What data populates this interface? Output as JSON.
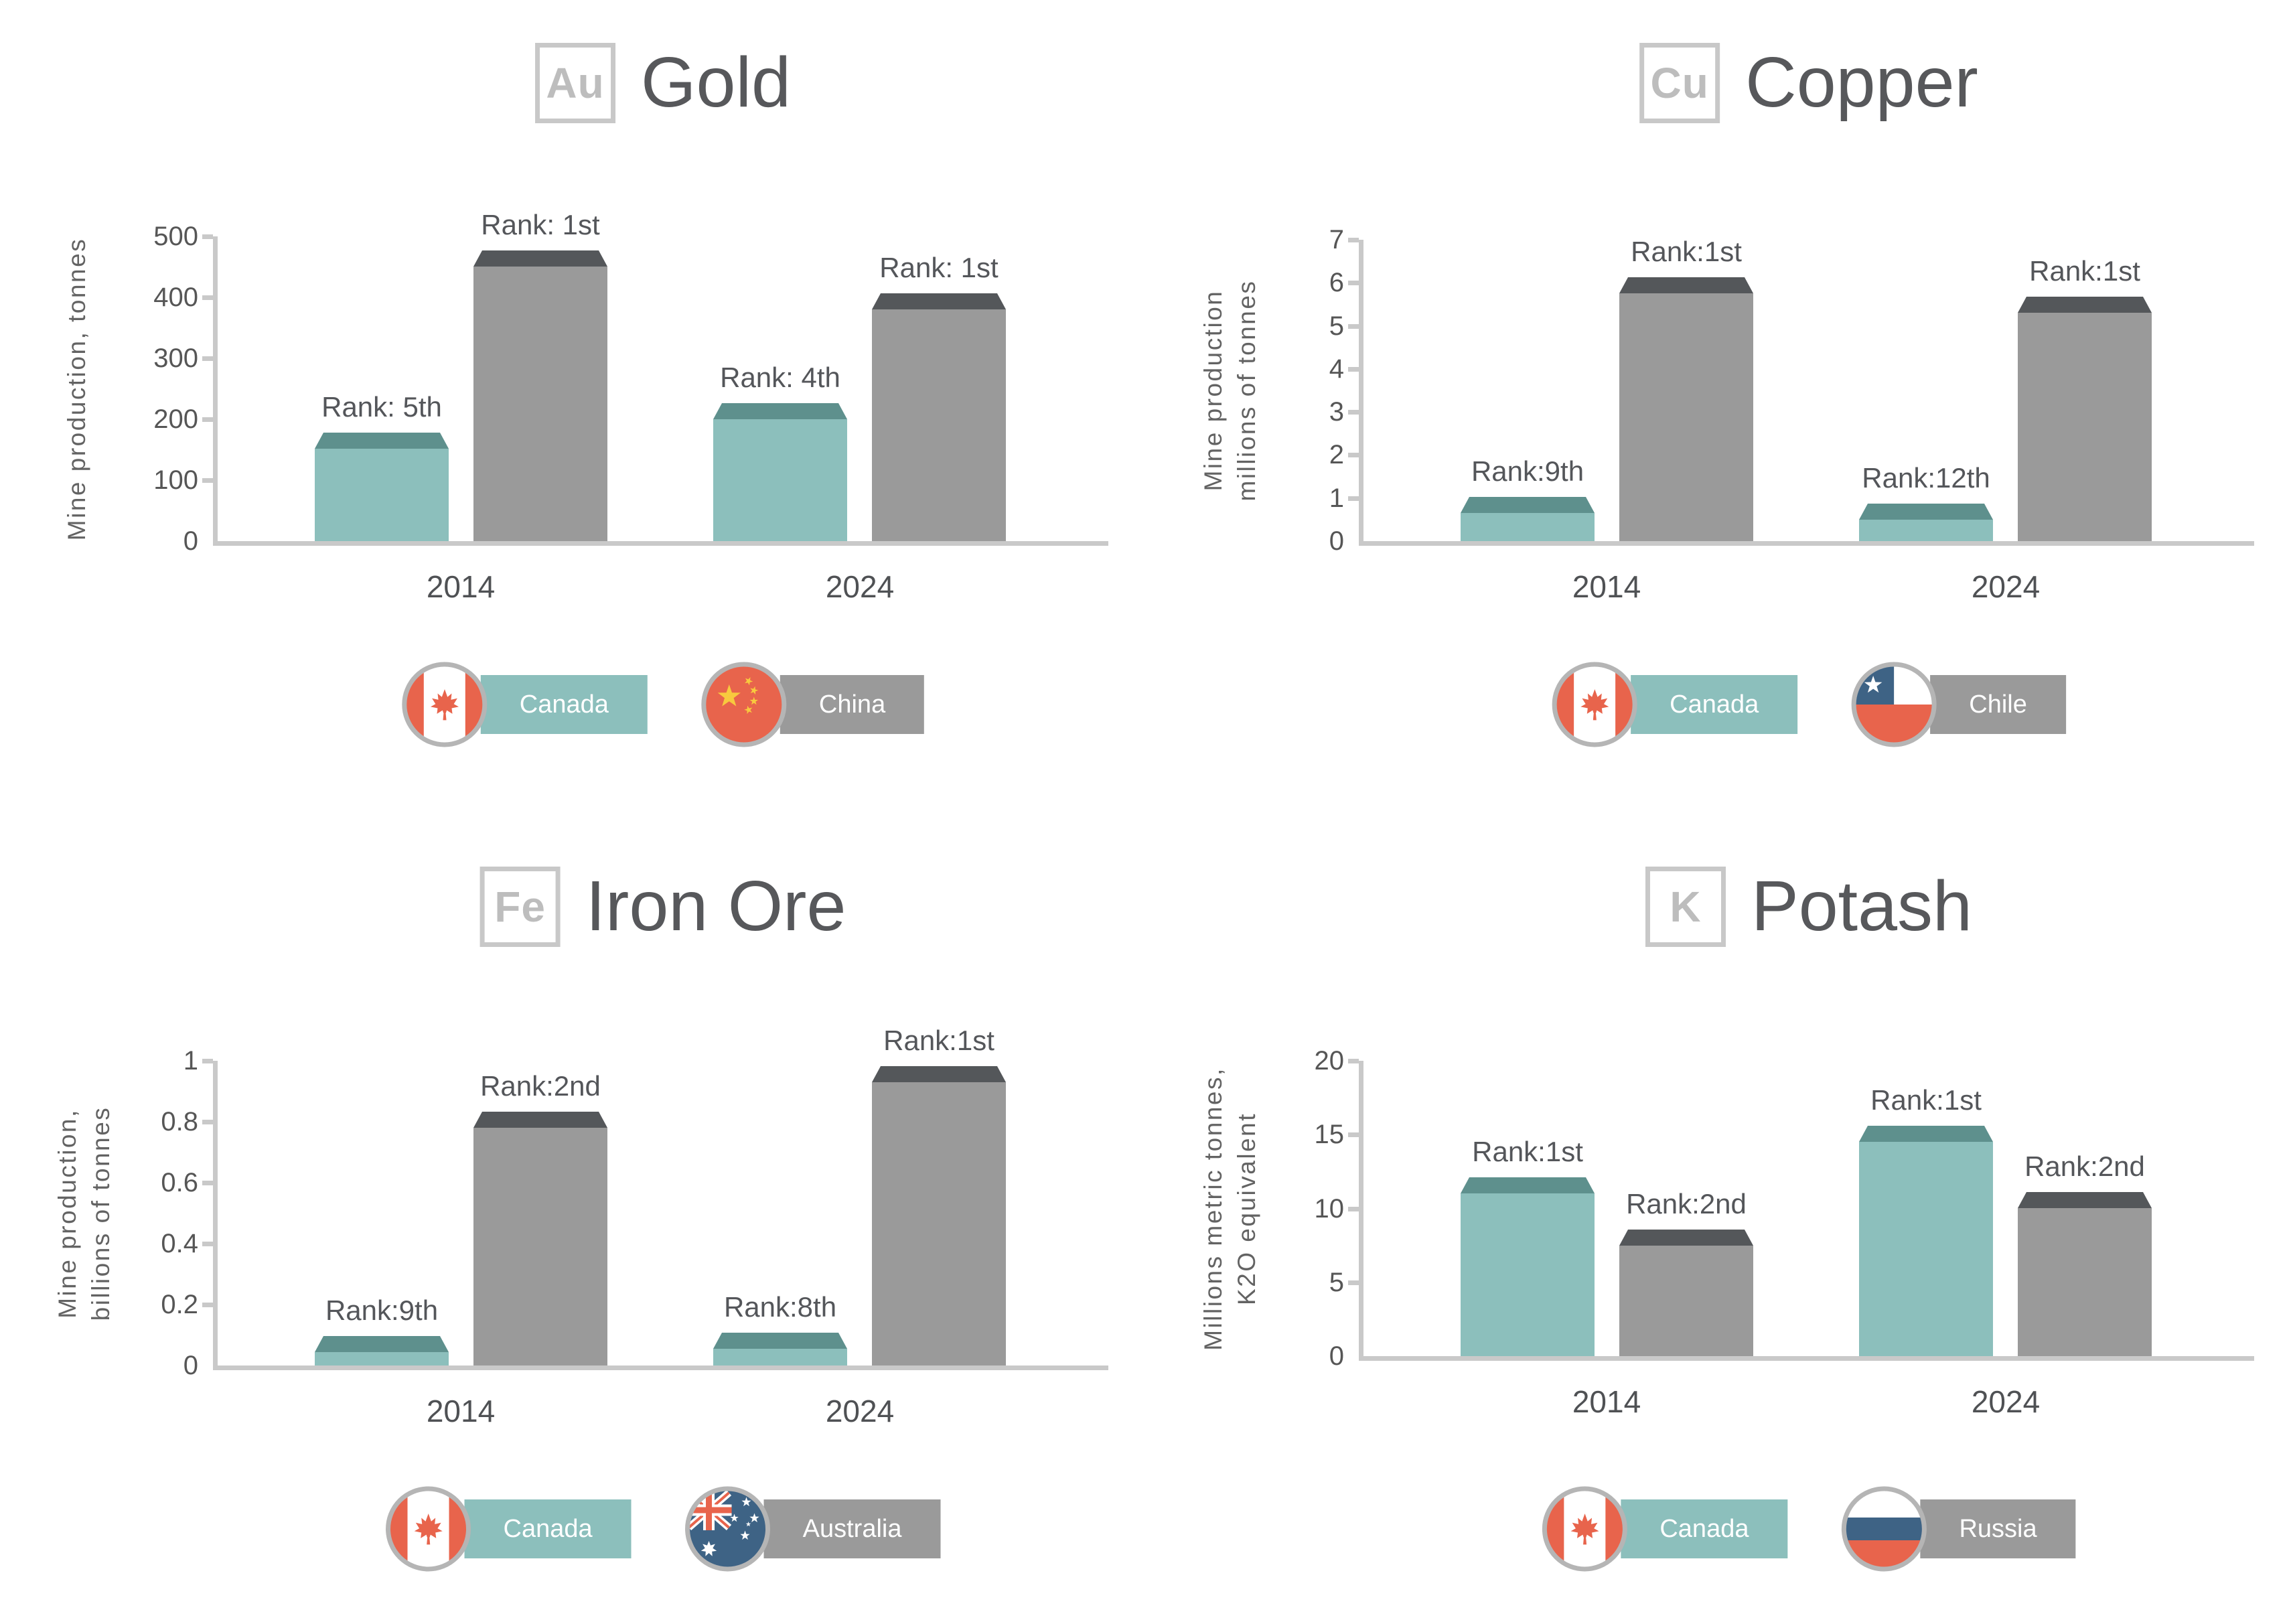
{
  "page": {
    "background": "#FFFFFF"
  },
  "colors": {
    "canada_series": "#8CBFBC",
    "canada_series_cap": "#5E908D",
    "competitor_series": "#9A9A9A",
    "competitor_series_cap": "#54575A",
    "axis_line": "#C9C9C9",
    "title_text": "#57585B",
    "element_symbol_text": "#BDBDBD",
    "element_box_border": "#C8C8C8",
    "tick_text": "#565656",
    "rank_text": "#54565A",
    "year_text": "#4F5154",
    "ylabel_text": "#636363",
    "legend_text": "#FFFFFF",
    "flag_ring": "#B5B5B5",
    "flag_red": "#E8644C",
    "flag_blue": "#3E6385",
    "flag_yellow": "#F8C93E",
    "flag_white": "#FFFFFF"
  },
  "chart_data": [
    {
      "type": "bar",
      "element_symbol": "Au",
      "title": "Gold",
      "ylabel_lines": [
        "Mine production, tonnes"
      ],
      "categories": [
        "2014",
        "2024"
      ],
      "series": [
        {
          "name": "Canada",
          "flag": "canada",
          "color_key": "canada",
          "values": [
            152,
            200
          ],
          "ranks": [
            "Rank: 5th",
            "Rank: 4th"
          ]
        },
        {
          "name": "China",
          "flag": "china",
          "color_key": "competitor",
          "values": [
            450,
            380
          ],
          "ranks": [
            "Rank: 1st",
            "Rank: 1st"
          ]
        }
      ],
      "ylim": [
        0,
        500
      ],
      "yticks": [
        0,
        100,
        200,
        300,
        400,
        500
      ],
      "grid": false,
      "legend_position": "bottom"
    },
    {
      "type": "bar",
      "element_symbol": "Cu",
      "title": "Copper",
      "ylabel_lines": [
        "Mine production",
        "millions of tonnes"
      ],
      "categories": [
        "2014",
        "2024"
      ],
      "series": [
        {
          "name": "Canada",
          "flag": "canada",
          "color_key": "canada",
          "values": [
            0.65,
            0.5
          ],
          "ranks": [
            "Rank:9th",
            "Rank:12th"
          ]
        },
        {
          "name": "Chile",
          "flag": "chile",
          "color_key": "competitor",
          "values": [
            5.75,
            5.3
          ],
          "ranks": [
            "Rank:1st",
            "Rank:1st"
          ]
        }
      ],
      "ylim": [
        0,
        7
      ],
      "yticks": [
        0,
        1,
        2,
        3,
        4,
        5,
        6,
        7
      ],
      "grid": false,
      "legend_position": "bottom"
    },
    {
      "type": "bar",
      "element_symbol": "Fe",
      "title": "Iron Ore",
      "ylabel_lines": [
        "Mine production,",
        "billions of tonnes"
      ],
      "categories": [
        "2014",
        "2024"
      ],
      "series": [
        {
          "name": "Canada",
          "flag": "canada",
          "color_key": "canada",
          "values": [
            0.045,
            0.055
          ],
          "ranks": [
            "Rank:9th",
            "Rank:8th"
          ]
        },
        {
          "name": "Australia",
          "flag": "australia",
          "color_key": "competitor",
          "values": [
            0.78,
            0.93
          ],
          "ranks": [
            "Rank:2nd",
            "Rank:1st"
          ]
        }
      ],
      "ylim": [
        0,
        1
      ],
      "yticks": [
        0,
        0.2,
        0.4,
        0.6,
        0.8,
        1
      ],
      "grid": false,
      "legend_position": "bottom"
    },
    {
      "type": "bar",
      "element_symbol": "K",
      "title": "Potash",
      "ylabel_lines": [
        "Millions metric tonnes,",
        "K2O equivalent"
      ],
      "categories": [
        "2014",
        "2024"
      ],
      "series": [
        {
          "name": "Canada",
          "flag": "canada",
          "color_key": "canada",
          "values": [
            11,
            14.5
          ],
          "ranks": [
            "Rank:1st",
            "Rank:1st"
          ]
        },
        {
          "name": "Russia",
          "flag": "russia",
          "color_key": "competitor",
          "values": [
            7.5,
            10
          ],
          "ranks": [
            "Rank:2nd",
            "Rank:2nd"
          ]
        }
      ],
      "ylim": [
        0,
        20
      ],
      "yticks": [
        0,
        5,
        10,
        15,
        20
      ],
      "grid": false,
      "legend_position": "bottom"
    }
  ]
}
